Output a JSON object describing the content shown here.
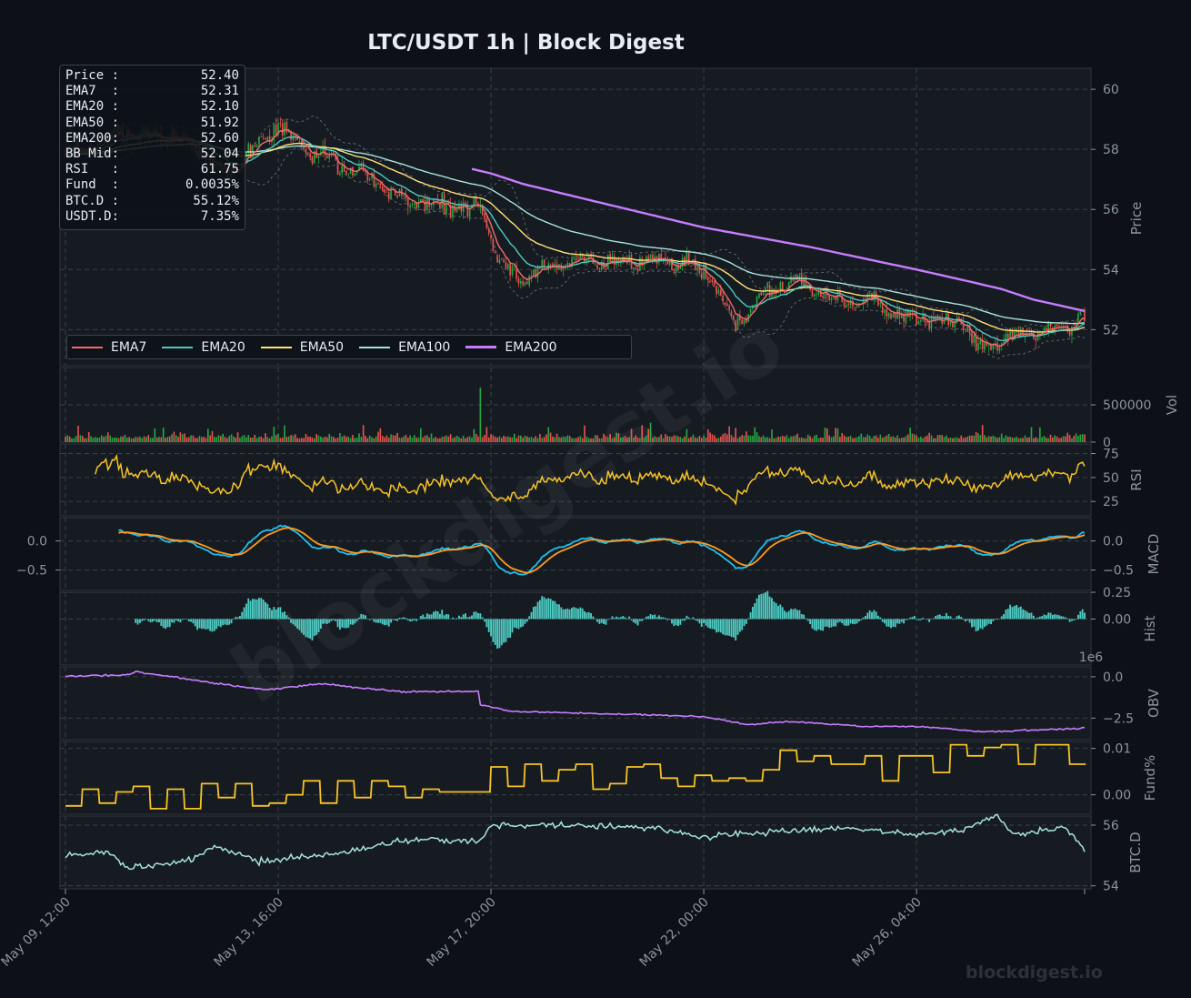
{
  "title": "LTC/USDT  1h  |  Block Digest",
  "watermark_diag": "blockdigest.io",
  "watermark_corner": "blockdigest.io",
  "info_box": [
    {
      "label": "Price :",
      "value": "52.40"
    },
    {
      "label": "EMA7  :",
      "value": "52.31"
    },
    {
      "label": "EMA20 :",
      "value": "52.10"
    },
    {
      "label": "EMA50 :",
      "value": "51.92"
    },
    {
      "label": "EMA200:",
      "value": "52.60"
    },
    {
      "label": "BB Mid:",
      "value": "52.04"
    },
    {
      "label": "RSI   :",
      "value": "61.75"
    },
    {
      "label": "Fund  :",
      "value": "0.0035%"
    },
    {
      "label": "BTC.D :",
      "value": "55.12%"
    },
    {
      "label": "USDT.D:",
      "value": "7.35%"
    }
  ],
  "legend": [
    {
      "label": "EMA7",
      "color": "#f26b6b"
    },
    {
      "label": "EMA20",
      "color": "#4ec9c0"
    },
    {
      "label": "EMA50",
      "color": "#ffe07a"
    },
    {
      "label": "EMA100",
      "color": "#a7e3df"
    },
    {
      "label": "EMA200",
      "color": "#c77dff"
    }
  ],
  "chart_data": {
    "type": "candlestick",
    "pair": "LTC/USDT",
    "timeframe": "1h",
    "x_ticks": [
      "May 09, 12:00",
      "May 13, 16:00",
      "May 17, 20:00",
      "May 22, 00:00",
      "May 26, 04:00"
    ],
    "bars": 480,
    "price_path": [
      [
        0,
        57.9
      ],
      [
        15,
        58.2
      ],
      [
        30,
        58.6
      ],
      [
        45,
        58.4
      ],
      [
        60,
        58.1
      ],
      [
        75,
        57.2
      ],
      [
        100,
        58.8
      ],
      [
        115,
        57.9
      ],
      [
        135,
        57.3
      ],
      [
        160,
        56.3
      ],
      [
        185,
        56.1
      ],
      [
        195,
        56.0
      ],
      [
        205,
        54.1
      ],
      [
        215,
        53.7
      ],
      [
        235,
        54.3
      ],
      [
        265,
        54.2
      ],
      [
        285,
        54.3
      ],
      [
        300,
        54.0
      ],
      [
        315,
        52.2
      ],
      [
        330,
        53.4
      ],
      [
        345,
        53.6
      ],
      [
        360,
        53.0
      ],
      [
        380,
        52.9
      ],
      [
        395,
        52.4
      ],
      [
        420,
        52.3
      ],
      [
        430,
        51.3
      ],
      [
        445,
        51.8
      ],
      [
        460,
        51.9
      ],
      [
        479,
        52.4
      ]
    ],
    "ema200_path": [
      [
        191,
        57.35
      ],
      [
        200,
        57.2
      ],
      [
        215,
        56.85
      ],
      [
        250,
        56.25
      ],
      [
        300,
        55.4
      ],
      [
        350,
        54.75
      ],
      [
        400,
        54.0
      ],
      [
        425,
        53.6
      ],
      [
        440,
        53.35
      ],
      [
        455,
        53.0
      ],
      [
        479,
        52.62
      ]
    ],
    "panels": [
      {
        "name": "Price",
        "ylabel": "Price",
        "ylim": [
          50.8,
          60.7
        ],
        "ticks": [
          "52",
          "54",
          "56",
          "58",
          "60"
        ]
      },
      {
        "name": "Vol",
        "ylabel": "Vol",
        "ylim": [
          0,
          1000000
        ],
        "ticks": [
          "0",
          "500000"
        ],
        "spike": {
          "bar": 195,
          "value": 730000
        }
      },
      {
        "name": "RSI",
        "ylabel": "RSI",
        "ylim": [
          10,
          85
        ],
        "ticks": [
          "25",
          "50",
          "75"
        ],
        "last": 61.75,
        "color": "#f7c325"
      },
      {
        "name": "MACD",
        "ylabel": "MACD",
        "ylim": [
          -0.85,
          0.4
        ],
        "ticks_right": [
          "−0.5",
          "0.0"
        ],
        "ticks_left": [
          "−0.5",
          "0.0"
        ],
        "macd_color": "#1ec0f0",
        "signal_color": "#ff9a1f"
      },
      {
        "name": "Hist",
        "ylabel": "Hist",
        "ylim": [
          -0.43,
          0.25
        ],
        "ticks": [
          "0.00",
          "0.25"
        ],
        "color": "#4ecdc4"
      },
      {
        "name": "OBV",
        "ylabel": "OBV",
        "offset_label": "1e6",
        "ylim": [
          -3.8,
          0.6
        ],
        "ticks": [
          "−2.5",
          "0.0"
        ],
        "color": "#c77dff",
        "path": [
          [
            0,
            0.05
          ],
          [
            30,
            0.1
          ],
          [
            33,
            0.3
          ],
          [
            50,
            0.0
          ],
          [
            70,
            -0.4
          ],
          [
            95,
            -0.8
          ],
          [
            120,
            -0.4
          ],
          [
            140,
            -0.7
          ],
          [
            160,
            -0.9
          ],
          [
            194,
            -0.9
          ],
          [
            195,
            -1.7
          ],
          [
            210,
            -2.1
          ],
          [
            240,
            -2.2
          ],
          [
            275,
            -2.3
          ],
          [
            300,
            -2.4
          ],
          [
            320,
            -2.9
          ],
          [
            340,
            -2.7
          ],
          [
            375,
            -3.0
          ],
          [
            400,
            -3.0
          ],
          [
            430,
            -3.3
          ],
          [
            440,
            -3.3
          ],
          [
            479,
            -3.1
          ]
        ]
      },
      {
        "name": "Fund%",
        "ylabel": "Fund%",
        "ylim": [
          -0.0042,
          0.0115
        ],
        "ticks": [
          "0.00",
          "0.01"
        ],
        "color": "#f7c325"
      },
      {
        "name": "BTC.D",
        "ylabel": "BTC.D",
        "ylim": [
          53.9,
          56.3
        ],
        "ticks": [
          "54",
          "56"
        ],
        "last": 55.12,
        "color": "#a7e3df",
        "path": [
          [
            0,
            55.0
          ],
          [
            20,
            55.1
          ],
          [
            30,
            54.55
          ],
          [
            60,
            54.9
          ],
          [
            70,
            55.3
          ],
          [
            90,
            54.8
          ],
          [
            130,
            55.1
          ],
          [
            160,
            55.5
          ],
          [
            180,
            55.5
          ],
          [
            195,
            55.5
          ],
          [
            200,
            56.0
          ],
          [
            240,
            56.0
          ],
          [
            280,
            55.9
          ],
          [
            300,
            55.6
          ],
          [
            340,
            55.8
          ],
          [
            360,
            55.9
          ],
          [
            400,
            55.7
          ],
          [
            420,
            55.8
          ],
          [
            438,
            56.3
          ],
          [
            445,
            55.7
          ],
          [
            470,
            55.9
          ],
          [
            479,
            55.2
          ]
        ]
      }
    ]
  }
}
